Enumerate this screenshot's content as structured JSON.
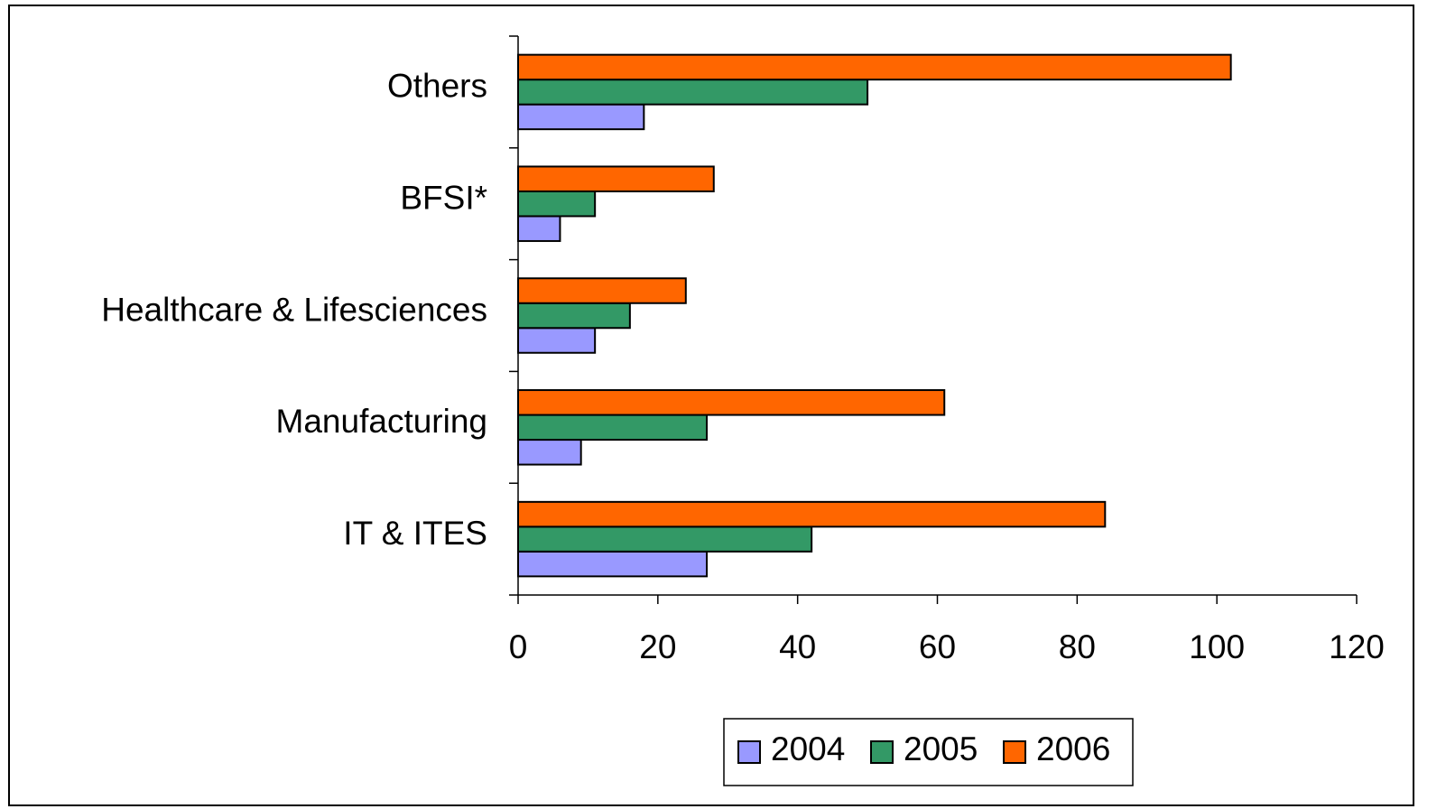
{
  "chart_data": {
    "type": "bar",
    "orientation": "horizontal",
    "categories": [
      "IT & ITES",
      "Manufacturing",
      "Healthcare & Lifesciences",
      "BFSI*",
      "Others"
    ],
    "series": [
      {
        "name": "2004",
        "color": "#9999ff",
        "values": [
          27,
          9,
          11,
          6,
          18
        ]
      },
      {
        "name": "2005",
        "color": "#339966",
        "values": [
          42,
          27,
          16,
          11,
          50
        ]
      },
      {
        "name": "2006",
        "color": "#ff6600",
        "values": [
          84,
          61,
          24,
          28,
          102
        ]
      }
    ],
    "xlim": [
      0,
      120
    ],
    "xticks": [
      0,
      20,
      40,
      60,
      80,
      100,
      120
    ],
    "legend": "bottom"
  }
}
